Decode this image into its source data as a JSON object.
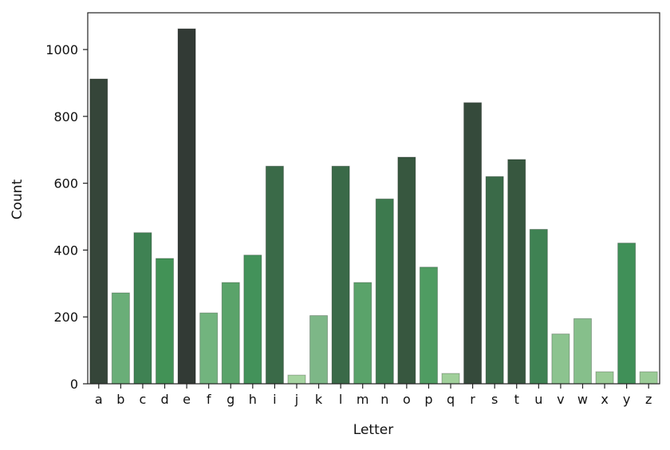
{
  "chart_data": {
    "type": "bar",
    "title": "",
    "xlabel": "Letter",
    "ylabel": "Count",
    "ylim": [
      0,
      1110
    ],
    "yticks": [
      0,
      200,
      400,
      600,
      800,
      1000
    ],
    "grid": false,
    "categories": [
      "a",
      "b",
      "c",
      "d",
      "e",
      "f",
      "g",
      "h",
      "i",
      "j",
      "k",
      "l",
      "m",
      "n",
      "o",
      "p",
      "q",
      "r",
      "s",
      "t",
      "u",
      "v",
      "w",
      "x",
      "y",
      "z"
    ],
    "values": [
      912,
      272,
      452,
      375,
      1062,
      212,
      303,
      385,
      651,
      26,
      204,
      651,
      303,
      553,
      678,
      349,
      31,
      841,
      620,
      671,
      462,
      149,
      195,
      36,
      421,
      36
    ],
    "colors": [
      "#354539",
      "#6aae78",
      "#3f8253",
      "#429256",
      "#323a35",
      "#72b47e",
      "#5aa36a",
      "#43925a",
      "#3a6a48",
      "#a5d3a0",
      "#7db787",
      "#3a6a48",
      "#5aa36a",
      "#3d7a4e",
      "#37573f",
      "#4f9c62",
      "#a0cf9a",
      "#354a3b",
      "#3a6a48",
      "#37573f",
      "#3f8253",
      "#8cc38f",
      "#86bf8b",
      "#9acb96",
      "#409058",
      "#9acb96"
    ]
  }
}
